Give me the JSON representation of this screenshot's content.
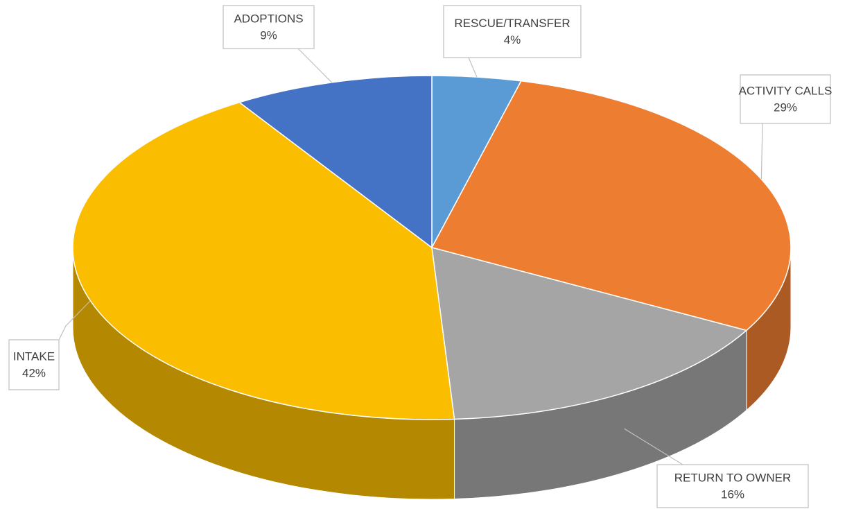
{
  "chart_data": {
    "type": "pie",
    "categories": [
      "RESCUE/TRANSFER",
      "ACTIVITY CALLS",
      "RETURN TO OWNER",
      "INTAKE",
      "ADOPTIONS"
    ],
    "values": [
      4,
      29,
      16,
      42,
      9
    ],
    "value_labels": [
      "4%",
      "29%",
      "16%",
      "42%",
      "9%"
    ],
    "colors": [
      "#5b9bd5",
      "#ed7d31",
      "#a5a5a5",
      "#fabd00",
      "#4472c4"
    ]
  }
}
